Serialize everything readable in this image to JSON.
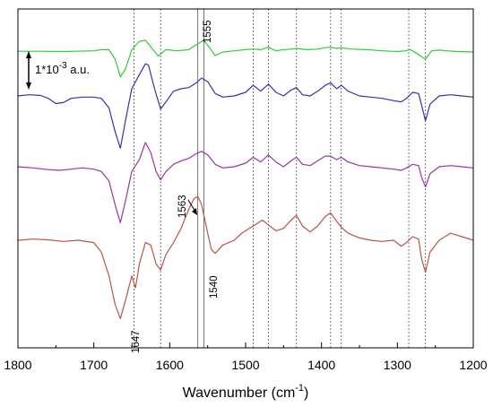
{
  "chart_data": {
    "type": "line",
    "xlabel": "Wavenumber (cm",
    "xlabel_sup": "-1",
    "xlabel_end": ")",
    "ylabel": "",
    "xlim": [
      1800,
      1200
    ],
    "x_reversed": true,
    "y_axis": "arbitrary (stacked spectra, no y tick labels)",
    "grid": false,
    "legend": "none",
    "x_ticks": [
      "1800",
      "1700",
      "1600",
      "1500",
      "1400",
      "1300",
      "1200"
    ],
    "scale_bar": {
      "text_main": "1*10",
      "text_exp": "-3",
      "text_unit": " a.u.",
      "value": 0.001
    },
    "annotations": [
      "1555",
      "1563",
      "1540",
      "1647"
    ],
    "reference_lines": [
      1647,
      1612,
      1563,
      1555,
      1490,
      1470,
      1433,
      1388,
      1374,
      1285,
      1263
    ],
    "series": [
      {
        "color": "#33cc33",
        "x": [
          1800,
          1770,
          1740,
          1700,
          1690,
          1680,
          1672,
          1665,
          1658,
          1650,
          1640,
          1632,
          1625,
          1615,
          1605,
          1590,
          1575,
          1565,
          1555,
          1548,
          1540,
          1530,
          1515,
          1500,
          1490,
          1480,
          1470,
          1460,
          1450,
          1440,
          1433,
          1420,
          1405,
          1395,
          1388,
          1380,
          1374,
          1360,
          1340,
          1320,
          1300,
          1290,
          1283,
          1275,
          1268,
          1263,
          1255,
          1245,
          1235,
          1220,
          1200
        ],
        "y": [
          0.03,
          0.03,
          0.02,
          0.05,
          0.1,
          0.1,
          -0.3,
          -1.05,
          -0.7,
          0.1,
          0.45,
          0.5,
          0.22,
          -0.17,
          0.1,
          0.05,
          0.1,
          0.3,
          0.5,
          0.2,
          -0.15,
          0.0,
          0.05,
          0.1,
          0.12,
          0.1,
          0.2,
          0.05,
          0.1,
          0.12,
          0.15,
          0.1,
          0.12,
          0.18,
          0.2,
          0.15,
          0.18,
          0.12,
          0.1,
          0.05,
          0.02,
          0.05,
          0.1,
          -0.05,
          -0.2,
          -0.3,
          0.05,
          0.08,
          0.05,
          0.02,
          0.0
        ]
      },
      {
        "color": "#3333aa",
        "x": [
          1800,
          1785,
          1770,
          1760,
          1750,
          1740,
          1730,
          1715,
          1700,
          1690,
          1680,
          1672,
          1665,
          1658,
          1650,
          1640,
          1632,
          1628,
          1620,
          1612,
          1605,
          1595,
          1585,
          1575,
          1565,
          1558,
          1550,
          1540,
          1530,
          1515,
          1500,
          1490,
          1480,
          1470,
          1460,
          1450,
          1440,
          1433,
          1425,
          1415,
          1405,
          1395,
          1388,
          1380,
          1374,
          1365,
          1350,
          1335,
          1320,
          1305,
          1295,
          1288,
          1280,
          1272,
          1268,
          1263,
          1257,
          1245,
          1230,
          1215,
          1200
        ],
        "y": [
          0.0,
          0.05,
          0.02,
          -0.1,
          -0.32,
          -0.28,
          -0.1,
          -0.05,
          -0.05,
          -0.1,
          -0.5,
          -1.5,
          -2.2,
          -1.0,
          0.3,
          0.9,
          1.35,
          1.3,
          0.3,
          -0.55,
          -0.25,
          0.2,
          0.3,
          0.35,
          0.55,
          0.75,
          0.6,
          0.1,
          -0.05,
          0.0,
          0.15,
          0.45,
          0.2,
          0.5,
          0.15,
          0.0,
          0.25,
          0.35,
          0.05,
          0.0,
          0.2,
          0.45,
          0.55,
          0.3,
          0.45,
          0.2,
          0.0,
          -0.05,
          -0.1,
          -0.2,
          -0.25,
          -0.1,
          0.15,
          0.1,
          -0.4,
          -1.05,
          -0.35,
          0.0,
          0.05,
          0.0,
          -0.05
        ]
      },
      {
        "color": "#9933aa",
        "x": [
          1800,
          1780,
          1760,
          1745,
          1730,
          1715,
          1700,
          1690,
          1680,
          1672,
          1665,
          1658,
          1650,
          1640,
          1632,
          1625,
          1618,
          1612,
          1605,
          1595,
          1585,
          1575,
          1565,
          1558,
          1550,
          1540,
          1530,
          1515,
          1500,
          1490,
          1480,
          1470,
          1460,
          1450,
          1440,
          1433,
          1425,
          1415,
          1405,
          1395,
          1388,
          1380,
          1374,
          1365,
          1350,
          1335,
          1320,
          1305,
          1295,
          1288,
          1280,
          1272,
          1268,
          1263,
          1257,
          1245,
          1230,
          1215,
          1200
        ],
        "y": [
          0.0,
          -0.05,
          -0.12,
          -0.15,
          -0.1,
          -0.05,
          -0.1,
          -0.2,
          -0.6,
          -1.6,
          -2.35,
          -1.4,
          -0.2,
          0.3,
          1.02,
          0.6,
          -0.2,
          -0.55,
          -0.2,
          0.1,
          0.25,
          0.35,
          0.55,
          0.65,
          0.5,
          0.1,
          -0.05,
          0.0,
          0.15,
          0.4,
          0.2,
          0.5,
          0.2,
          0.0,
          0.25,
          0.4,
          0.1,
          0.05,
          0.25,
          0.45,
          0.45,
          0.3,
          0.4,
          0.2,
          0.05,
          0.0,
          -0.05,
          -0.1,
          -0.15,
          -0.05,
          0.1,
          0.05,
          -0.45,
          -0.85,
          -0.3,
          0.0,
          0.05,
          0.0,
          -0.05
        ]
      },
      {
        "color": "#bb5544",
        "x": [
          1800,
          1780,
          1760,
          1740,
          1720,
          1700,
          1690,
          1680,
          1672,
          1665,
          1658,
          1650,
          1645,
          1640,
          1632,
          1625,
          1618,
          1612,
          1605,
          1595,
          1585,
          1575,
          1568,
          1563,
          1558,
          1550,
          1545,
          1540,
          1530,
          1515,
          1505,
          1495,
          1485,
          1478,
          1470,
          1460,
          1450,
          1440,
          1433,
          1425,
          1415,
          1405,
          1395,
          1388,
          1380,
          1374,
          1365,
          1350,
          1335,
          1320,
          1305,
          1295,
          1288,
          1280,
          1272,
          1268,
          1263,
          1257,
          1245,
          1230,
          1215,
          1200
        ],
        "y": [
          0.0,
          0.05,
          0.02,
          -0.05,
          0.0,
          -0.1,
          -0.5,
          -1.5,
          -2.7,
          -3.3,
          -2.5,
          -1.5,
          -2.0,
          -1.0,
          -0.1,
          -0.2,
          -1.0,
          -1.25,
          -0.6,
          -0.1,
          0.5,
          1.3,
          1.75,
          1.85,
          1.5,
          0.3,
          -0.4,
          -0.55,
          -0.2,
          0.0,
          0.3,
          0.5,
          0.7,
          0.85,
          0.65,
          0.4,
          0.5,
          0.85,
          1.05,
          0.6,
          0.35,
          0.6,
          1.0,
          1.15,
          0.8,
          0.55,
          0.3,
          0.1,
          0.0,
          -0.05,
          0.0,
          -0.25,
          -0.1,
          0.15,
          0.05,
          -0.8,
          -1.35,
          -0.5,
          0.0,
          0.3,
          0.15,
          0.0
        ]
      }
    ]
  }
}
